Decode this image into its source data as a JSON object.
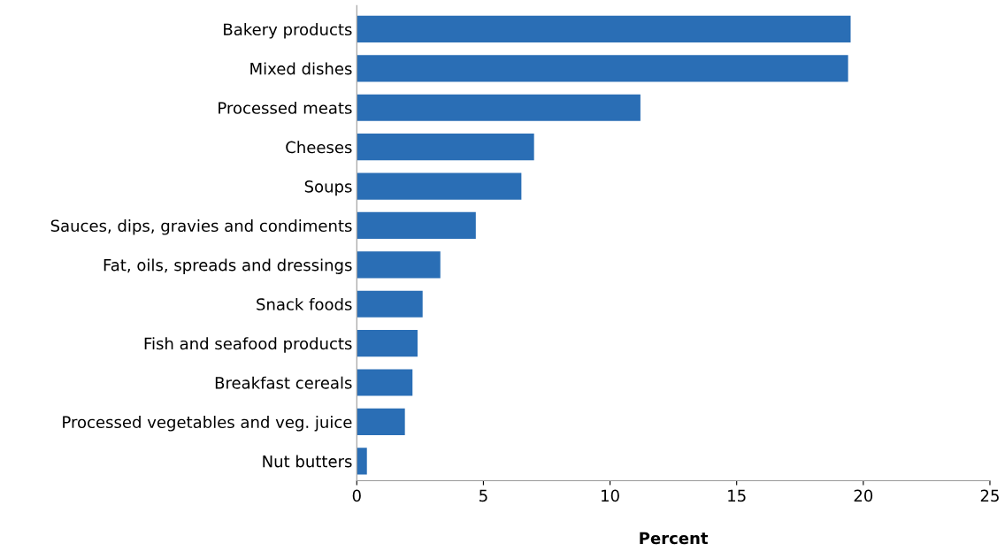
{
  "chart_data": {
    "type": "bar",
    "orientation": "horizontal",
    "xlabel": "Percent",
    "categories": [
      "Bakery products",
      "Mixed dishes",
      "Processed meats",
      "Cheeses",
      "Soups",
      "Sauces, dips, gravies and condiments",
      "Fat, oils, spreads and dressings",
      "Snack foods",
      "Fish and seafood products",
      "Breakfast cereals",
      "Processed vegetables and veg. juice",
      "Nut butters"
    ],
    "values": [
      19.5,
      19.4,
      11.2,
      7.0,
      6.5,
      4.7,
      3.3,
      2.6,
      2.4,
      2.2,
      1.9,
      0.4
    ],
    "color": "#2a6eb5",
    "xlim": [
      0,
      25
    ],
    "xticks": [
      0,
      5,
      10,
      15,
      20,
      25
    ],
    "grid": false,
    "legend": false
  }
}
